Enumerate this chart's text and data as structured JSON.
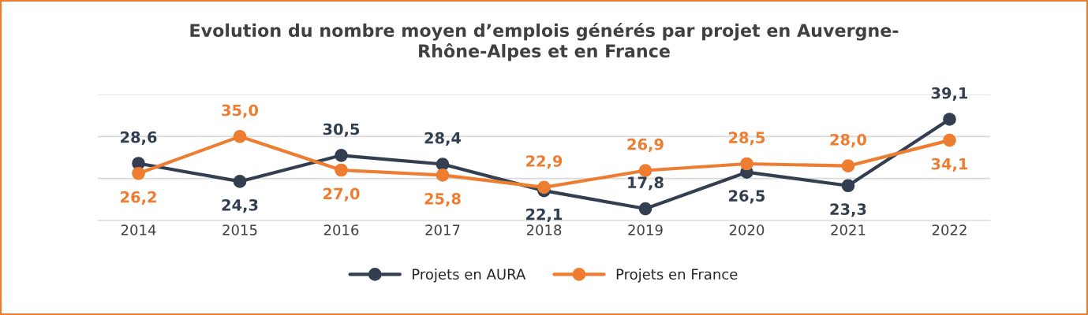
{
  "chart_data": {
    "type": "line",
    "title": "Evolution du nombre moyen d’emplois générés par projet en Auvergne-\nRhône-Alpes et en France",
    "categories": [
      "2014",
      "2015",
      "2016",
      "2017",
      "2018",
      "2019",
      "2020",
      "2021",
      "2022"
    ],
    "series": [
      {
        "name": "Projets en AURA",
        "color": "#333f50",
        "values": [
          28.6,
          24.3,
          30.5,
          28.4,
          22.1,
          17.8,
          26.5,
          23.3,
          39.1
        ],
        "value_labels": [
          "28,6",
          "24,3",
          "30,5",
          "28,4",
          "22,1",
          "17,8",
          "26,5",
          "23,3",
          "39,1"
        ]
      },
      {
        "name": "Projets en France",
        "color": "#ed7d31",
        "values": [
          26.2,
          35.0,
          27.0,
          25.8,
          22.9,
          26.9,
          28.5,
          28.0,
          34.1
        ],
        "value_labels": [
          "26,2",
          "35,0",
          "27,0",
          "25,8",
          "22,9",
          "26,9",
          "28,5",
          "28,0",
          "34,1"
        ]
      }
    ],
    "ylim": [
      15,
      45
    ],
    "yticks": [
      {
        "value": 15,
        "label": null
      },
      {
        "value": 25,
        "label": null
      },
      {
        "value": 35,
        "label": null
      },
      {
        "value": 45,
        "label": null
      }
    ],
    "tick_labels": "x",
    "grid": "y",
    "legend": "bottom",
    "marker": "circle",
    "line_style": "solid"
  }
}
